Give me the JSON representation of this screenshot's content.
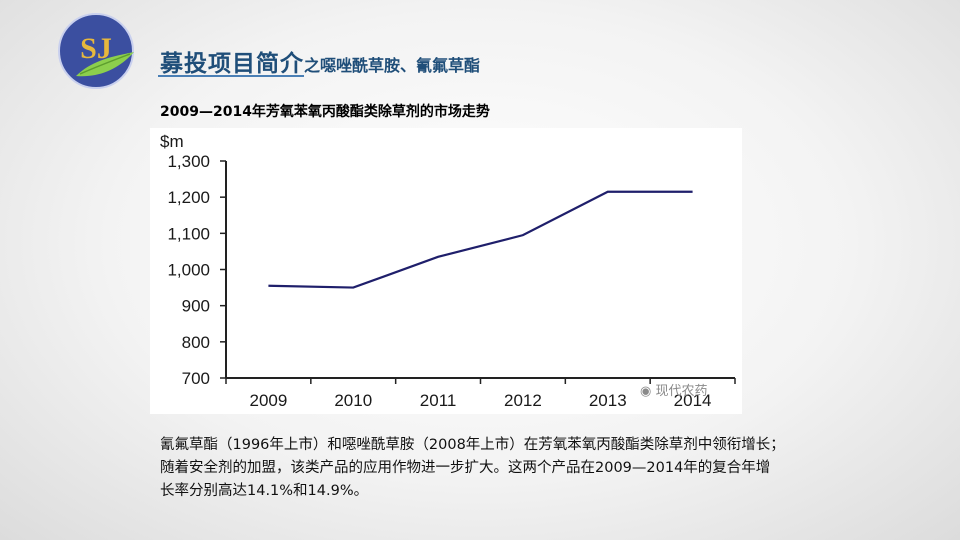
{
  "logo": {
    "text": "SJ",
    "colors": {
      "circle": "#3b4fa0",
      "text": "#e7b83d",
      "leaf": "#8ccf4d"
    }
  },
  "title": {
    "main": "募投项目简介",
    "sub": "之噁唑酰草胺、氰氟草酯"
  },
  "chart_heading": "2009—2014年芳氧苯氧丙酸酯类除草剂的市场走势",
  "chart_data": {
    "type": "line",
    "unit_label": "$m",
    "categories": [
      "2009",
      "2010",
      "2011",
      "2012",
      "2013",
      "2014"
    ],
    "values": [
      955,
      950,
      1035,
      1095,
      1215,
      1215
    ],
    "ylim": [
      700,
      1300
    ],
    "yticks": [
      "700",
      "800",
      "900",
      "1,000",
      "1,100",
      "1,200",
      "1,300"
    ],
    "ytick_values": [
      700,
      800,
      900,
      1000,
      1100,
      1200,
      1300
    ],
    "line_color": "#1f1f6b",
    "grid": false
  },
  "watermark": "现代农药",
  "body_lines": [
    "氰氟草酯（1996年上市）和噁唑酰草胺（2008年上市）在芳氧苯氧丙酸酯类除草剂中领衔增长；",
    "随着安全剂的加盟，该类产品的应用作物进一步扩大。这两个产品在2009—2014年的复合年增",
    "长率分别高达14.1%和14.9%。"
  ]
}
